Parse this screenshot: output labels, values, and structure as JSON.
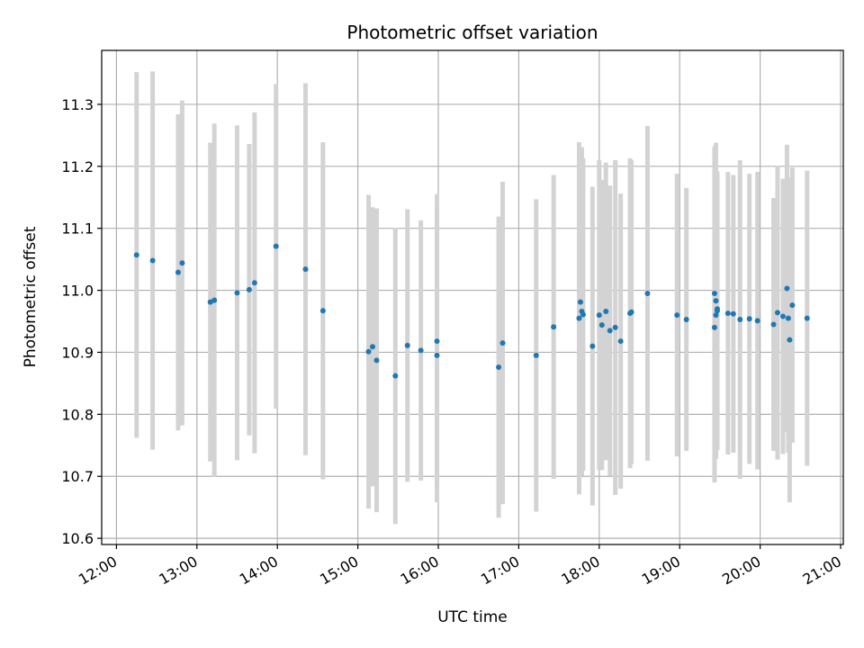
{
  "chart_data": {
    "type": "scatter",
    "title": "Photometric offset variation",
    "xlabel": "UTC time",
    "ylabel": "Photometric offset",
    "x_unit": "time of day (HH:MM)",
    "xlim": [
      "11:49",
      "21:02"
    ],
    "ylim": [
      10.59,
      11.387
    ],
    "x_ticks": [
      "12:00",
      "13:00",
      "14:00",
      "15:00",
      "16:00",
      "17:00",
      "18:00",
      "19:00",
      "20:00",
      "21:00"
    ],
    "y_ticks": [
      "10.6",
      "10.7",
      "10.8",
      "10.9",
      "11.0",
      "11.1",
      "11.2",
      "11.3"
    ],
    "grid": true,
    "colors": {
      "points": "#1f77b4",
      "errorbars": "#d3d3d3",
      "grid": "#b0b0b0"
    },
    "series": [
      {
        "x": [
          "12:15",
          "12:27",
          "12:46",
          "12:49",
          "13:10",
          "13:13",
          "13:30",
          "13:39",
          "13:43",
          "13:59",
          "14:21",
          "14:34",
          "15:08",
          "15:11",
          "15:14",
          "15:28",
          "15:37",
          "15:47",
          "15:59",
          "15:59",
          "16:45",
          "16:48",
          "17:13",
          "17:26",
          "17:45",
          "17:46",
          "17:47",
          "17:48",
          "17:55",
          "18:00",
          "18:02",
          "18:05",
          "18:08",
          "18:12",
          "18:16",
          "18:23",
          "18:24",
          "18:36",
          "18:58",
          "19:05",
          "19:26",
          "19:26",
          "19:27",
          "19:27",
          "19:28",
          "19:28",
          "19:36",
          "19:40",
          "19:45",
          "19:52",
          "19:58",
          "20:10",
          "20:13",
          "20:17",
          "20:20",
          "20:21",
          "20:22",
          "20:24",
          "20:35"
        ],
        "y": [
          11.057,
          11.048,
          11.029,
          11.044,
          10.981,
          10.984,
          10.996,
          11.001,
          11.012,
          11.071,
          11.034,
          10.967,
          10.901,
          10.909,
          10.887,
          10.862,
          10.911,
          10.903,
          10.918,
          10.895,
          10.876,
          10.915,
          10.895,
          10.941,
          10.955,
          10.981,
          10.966,
          10.961,
          10.91,
          10.96,
          10.944,
          10.966,
          10.935,
          10.94,
          10.918,
          10.963,
          10.965,
          10.995,
          10.96,
          10.953,
          10.94,
          10.995,
          10.983,
          10.96,
          10.97,
          10.967,
          10.963,
          10.962,
          10.953,
          10.954,
          10.951,
          10.945,
          10.964,
          10.958,
          11.003,
          10.955,
          10.92,
          10.976,
          10.955
        ],
        "y_err": [
          0.295,
          0.305,
          0.255,
          0.262,
          0.257,
          0.285,
          0.27,
          0.235,
          0.275,
          0.262,
          0.3,
          0.272,
          0.253,
          0.225,
          0.245,
          0.239,
          0.22,
          0.21,
          0.237,
          0.237,
          0.243,
          0.26,
          0.252,
          0.245,
          0.284,
          0.245,
          0.265,
          0.252,
          0.257,
          0.25,
          0.234,
          0.24,
          0.234,
          0.27,
          0.238,
          0.25,
          0.245,
          0.27,
          0.228,
          0.212,
          0.25,
          0.237,
          0.255,
          0.232,
          0.218,
          0.225,
          0.228,
          0.224,
          0.257,
          0.234,
          0.24,
          0.204,
          0.237,
          0.222,
          0.232,
          0.217,
          0.262,
          0.222,
          0.238
        ]
      }
    ]
  }
}
